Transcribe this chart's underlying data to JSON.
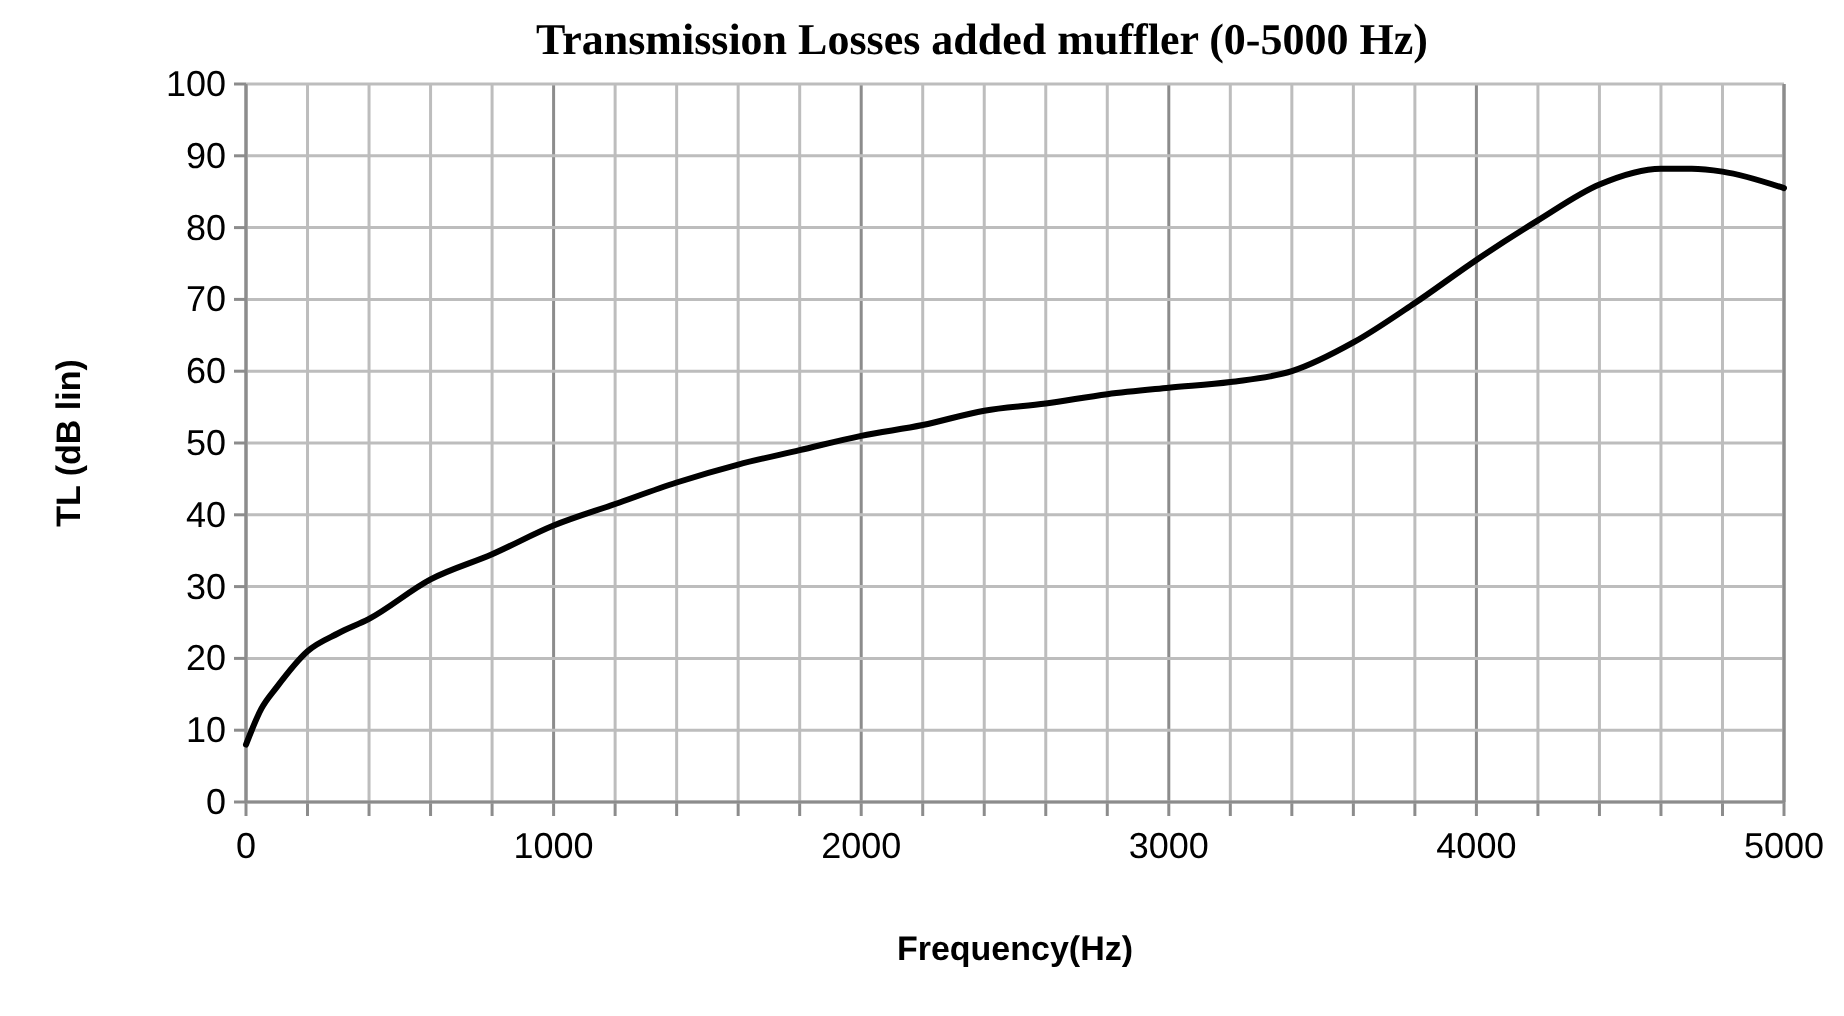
{
  "chart_data": {
    "type": "line",
    "title": "Transmission Losses added muffler (0-5000 Hz)",
    "xlabel": "Frequency(Hz)",
    "ylabel": "TL (dB lin)",
    "x": [
      0,
      50,
      100,
      200,
      300,
      400,
      600,
      800,
      1000,
      1200,
      1400,
      1600,
      1800,
      2000,
      2200,
      2400,
      2600,
      2800,
      3000,
      3200,
      3400,
      3600,
      3800,
      4000,
      4200,
      4400,
      4600,
      4700,
      4800,
      5000
    ],
    "series": [
      {
        "color": "#000000",
        "values": [
          8,
          13,
          16,
          21,
          23.5,
          25.5,
          31,
          34.5,
          38.5,
          41.5,
          44.5,
          47,
          49,
          51,
          52.5,
          54.5,
          55.5,
          56.8,
          57.7,
          58.5,
          60,
          64,
          69.5,
          75.5,
          81,
          86,
          88.2,
          88.2,
          87.8,
          85.5
        ]
      }
    ],
    "xlim": [
      0,
      5000
    ],
    "ylim": [
      0,
      100
    ],
    "xticks": [
      0,
      {
        "value": 200,
        "label": null
      },
      {
        "value": 400,
        "label": null
      },
      {
        "value": 600,
        "label": null
      },
      {
        "value": 800,
        "label": null
      },
      1000,
      {
        "value": 1200,
        "label": null
      },
      {
        "value": 1400,
        "label": null
      },
      {
        "value": 1600,
        "label": null
      },
      {
        "value": 1800,
        "label": null
      },
      2000,
      {
        "value": 2200,
        "label": null
      },
      {
        "value": 2400,
        "label": null
      },
      {
        "value": 2600,
        "label": null
      },
      {
        "value": 2800,
        "label": null
      },
      3000,
      {
        "value": 3200,
        "label": null
      },
      {
        "value": 3400,
        "label": null
      },
      {
        "value": 3600,
        "label": null
      },
      {
        "value": 3800,
        "label": null
      },
      4000,
      {
        "value": 4200,
        "label": null
      },
      {
        "value": 4400,
        "label": null
      },
      {
        "value": 4600,
        "label": null
      },
      {
        "value": 4800,
        "label": null
      },
      5000
    ],
    "yticks": [
      0,
      10,
      20,
      30,
      40,
      50,
      60,
      70,
      80,
      90,
      100
    ],
    "grid": true,
    "marker": "none",
    "line_style": "solid"
  }
}
